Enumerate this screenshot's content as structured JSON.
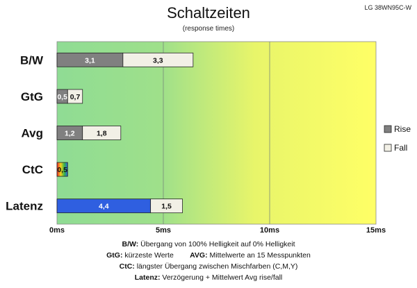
{
  "header": {
    "model": "LG 38WN95C-W",
    "title": "Schaltzeiten",
    "subtitle": "(response times)"
  },
  "colors": {
    "rise": "#808080",
    "fall": "#f2f0e6",
    "latency_rise": "#2f5fe0",
    "bg_green": "#8fdc94",
    "bg_yellow": "#ffff66"
  },
  "chart_data": {
    "type": "bar",
    "orientation": "horizontal",
    "stacked": true,
    "categories": [
      "B/W",
      "GtG",
      "Avg",
      "CtC",
      "Latenz"
    ],
    "series": [
      {
        "name": "Rise",
        "values": [
          3.1,
          0.5,
          1.2,
          null,
          4.4
        ],
        "labels": [
          "3,1",
          "0,5",
          "1,2",
          "",
          "4,4"
        ]
      },
      {
        "name": "Fall",
        "values": [
          3.3,
          0.7,
          1.8,
          0.5,
          1.5
        ],
        "labels": [
          "3,3",
          "0,7",
          "1,8",
          "0,5",
          "1,5"
        ]
      }
    ],
    "xlim": [
      0,
      15
    ],
    "xticks": [
      0,
      5,
      10,
      15
    ],
    "xtick_labels": [
      "0ms",
      "5ms",
      "10ms",
      "15ms"
    ],
    "grid": true,
    "legend": {
      "position": "right",
      "entries": [
        "Rise",
        "Fall"
      ]
    }
  },
  "notes": [
    {
      "key": "B/W:",
      "text": " Übergang von 100% Helligkeit auf 0% Helligkeit"
    },
    {
      "key": "GtG:",
      "text": " kürzeste Werte        ",
      "key2": "AVG:",
      "text2": " Mittelwerte an 15 Messpunkten"
    },
    {
      "key": "CtC:",
      "text": " längster Übergang zwischen Mischfarben (C,M,Y)"
    },
    {
      "key": "Latenz:",
      "text": " Verzögerung + Mittelwert Avg rise/fall"
    }
  ]
}
